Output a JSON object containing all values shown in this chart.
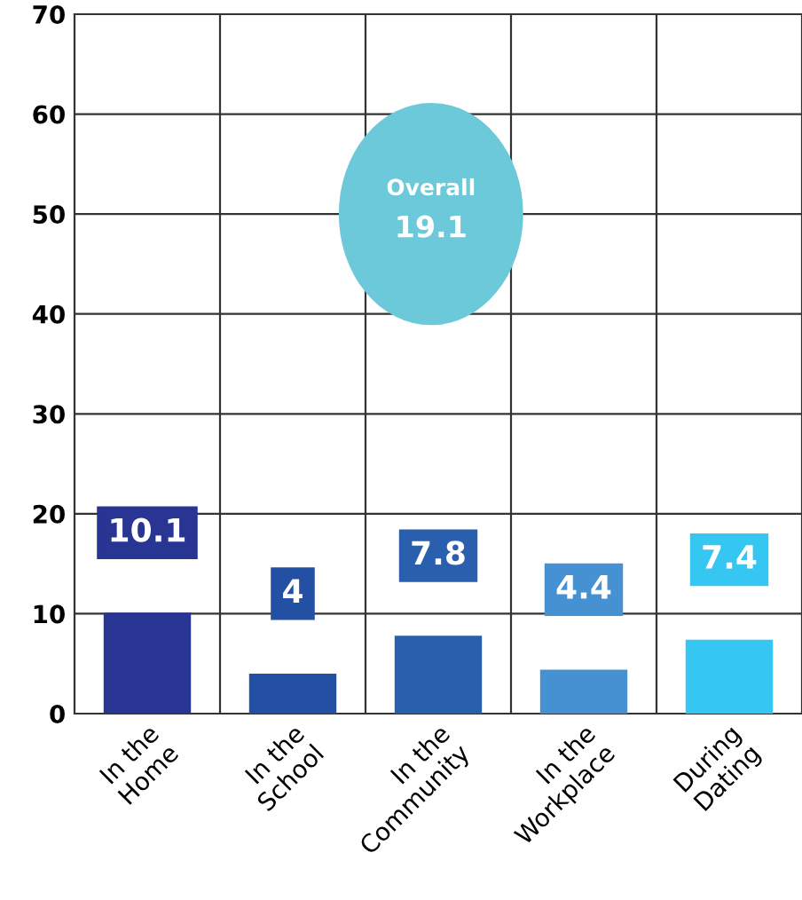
{
  "chart_data": {
    "type": "bar",
    "categories": [
      "In the\nHome",
      "In the\nSchool",
      "In the\nCommunity",
      "In the\nWorkplace",
      "During\nDating"
    ],
    "values": [
      10.1,
      4,
      7.8,
      4.4,
      7.4
    ],
    "colors": [
      "#283593",
      "#2450a3",
      "#2a5fae",
      "#4691d1",
      "#35c6f2"
    ],
    "ylim": [
      0,
      70
    ],
    "yticks": [
      0,
      10,
      20,
      30,
      40,
      50,
      60,
      70
    ],
    "grid": true,
    "data_labels": true,
    "annotations": [
      "Overall",
      "19.1"
    ]
  }
}
